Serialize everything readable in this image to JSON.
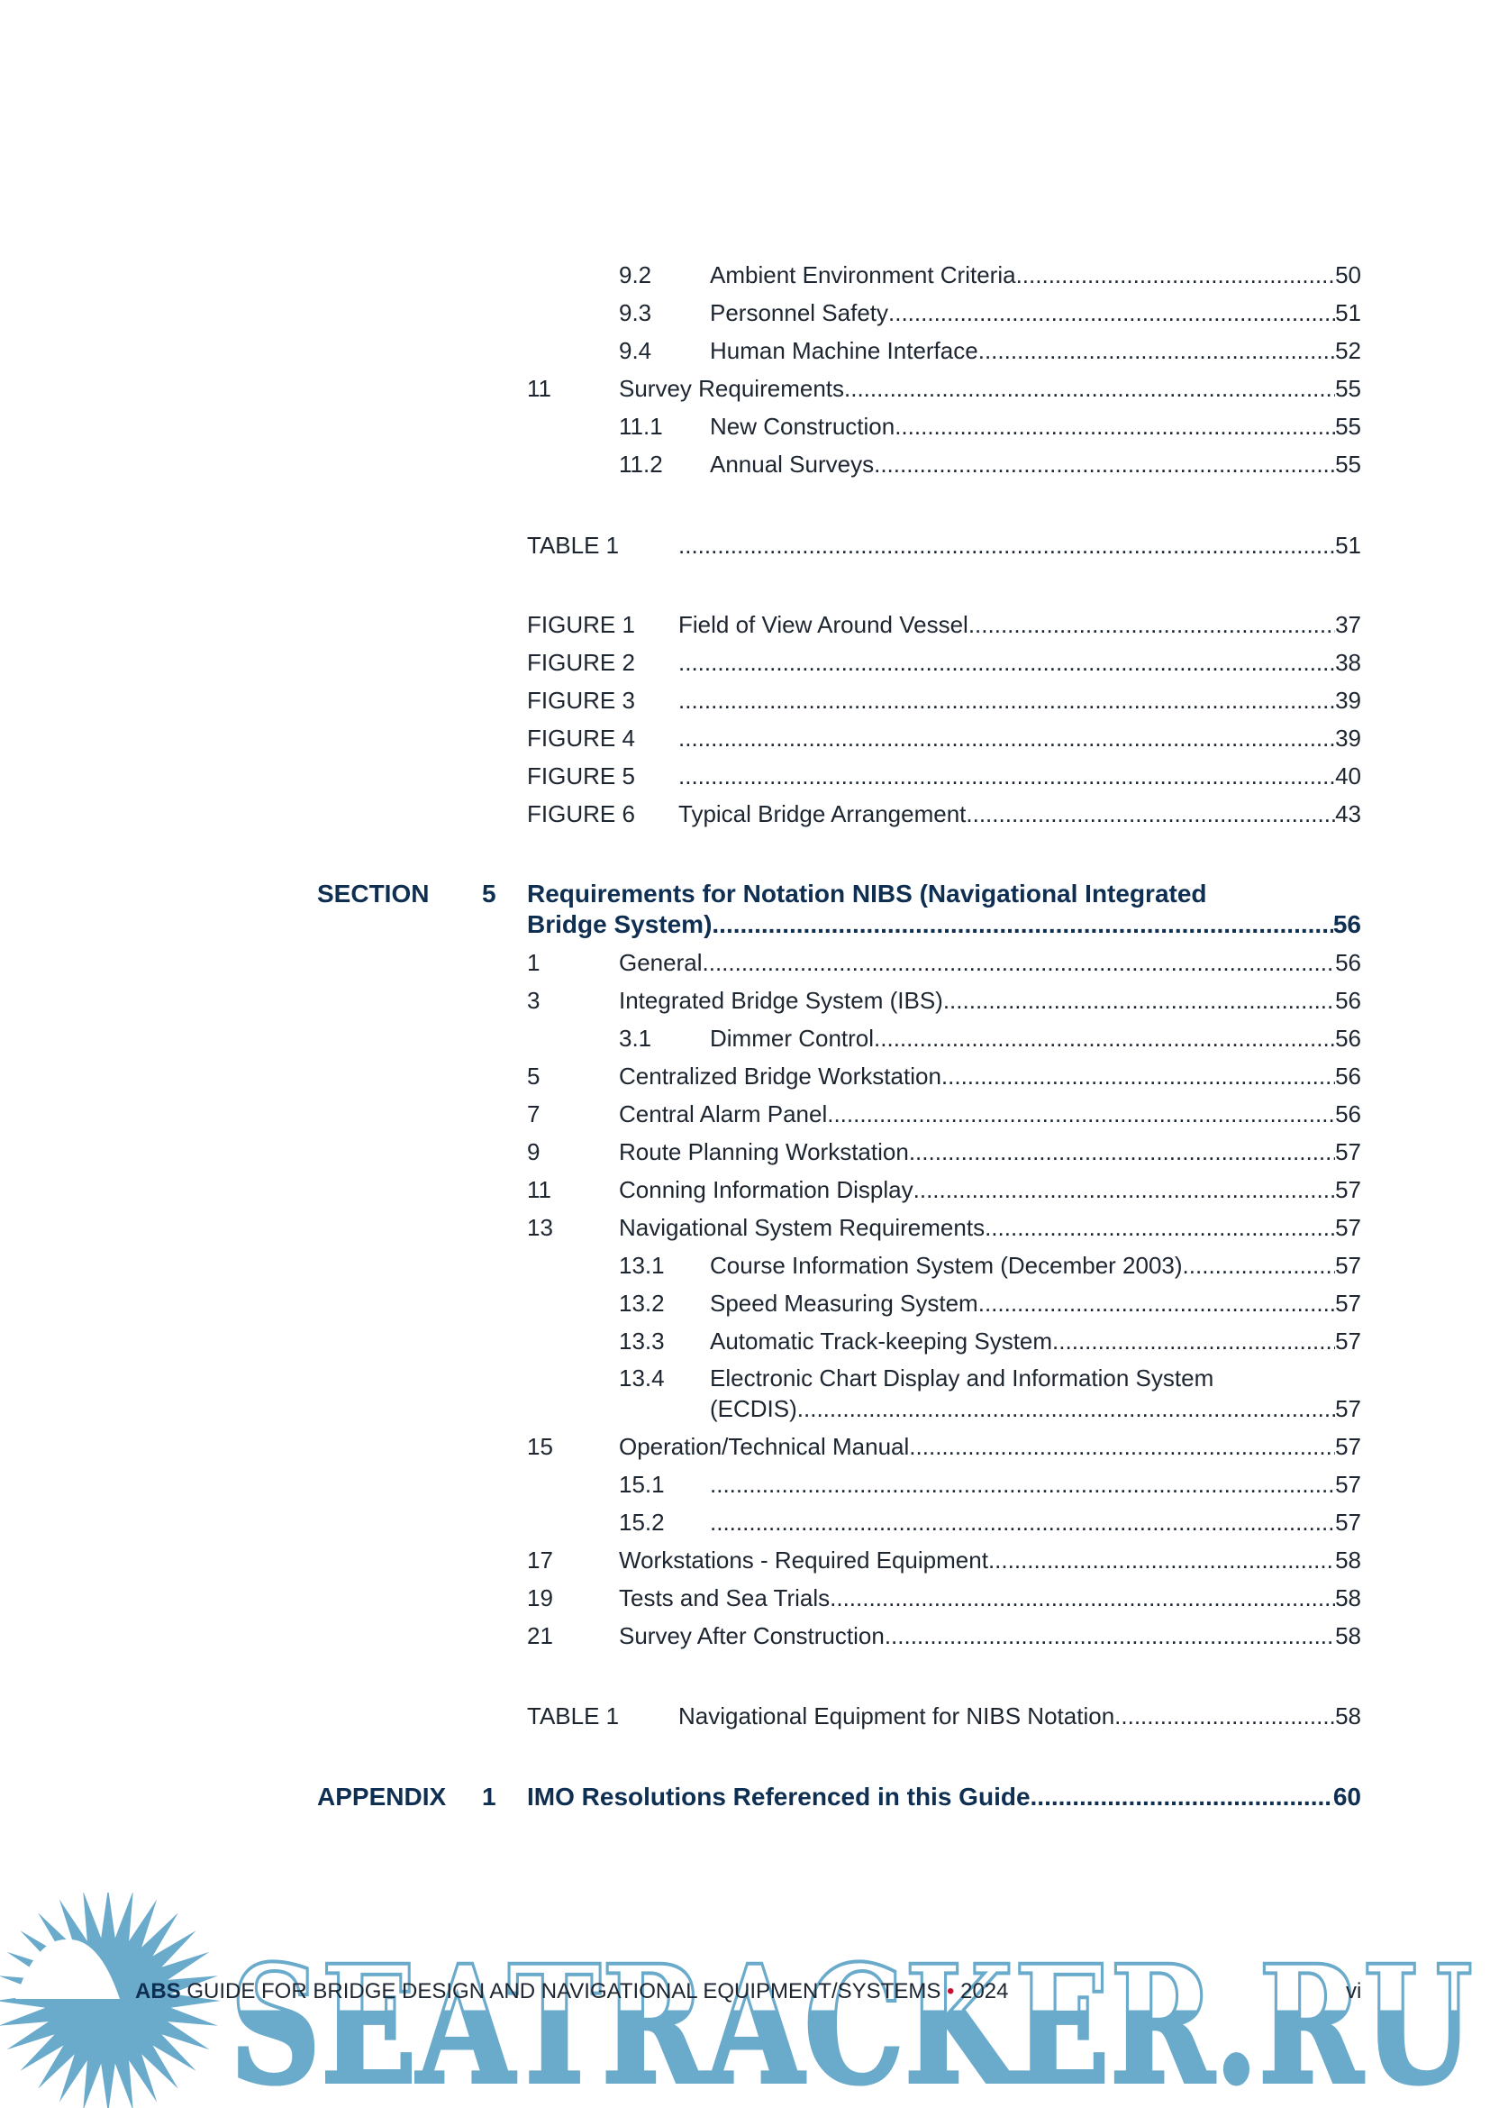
{
  "toc_top": [
    {
      "num": "9.2",
      "text": "Ambient Environment Criteria",
      "page": "50"
    },
    {
      "num": "9.3",
      "text": "Personnel Safety",
      "page": "51"
    },
    {
      "num": "9.4",
      "text": "Human Machine Interface",
      "page": "52"
    },
    {
      "num": "11",
      "text": "Survey Requirements",
      "page": "55"
    },
    {
      "num": "11.1",
      "text": "New Construction",
      "page": "55"
    },
    {
      "num": "11.2",
      "text": "Annual Surveys",
      "page": "55"
    }
  ],
  "tables_top": [
    {
      "label": "TABLE 1",
      "text": "",
      "page": "51"
    }
  ],
  "figures_top": [
    {
      "label": "FIGURE 1",
      "text": "Field of View Around Vessel",
      "page": "37"
    },
    {
      "label": "FIGURE 2",
      "text": "",
      "page": "38"
    },
    {
      "label": "FIGURE 3",
      "text": "",
      "page": "39"
    },
    {
      "label": "FIGURE 4",
      "text": "",
      "page": "39"
    },
    {
      "label": "FIGURE 5",
      "text": "",
      "page": "40"
    },
    {
      "label": "FIGURE 6",
      "text": "Typical Bridge Arrangement",
      "page": "43"
    }
  ],
  "section5": {
    "label": "SECTION",
    "number": "5",
    "title_line1": "Requirements for Notation NIBS (Navigational Integrated",
    "title_line2": "Bridge System)",
    "page": "56",
    "entries": [
      {
        "num": "1",
        "text": "General",
        "page": "56"
      },
      {
        "num": "3",
        "text": "Integrated Bridge System (IBS)",
        "page": "56"
      },
      {
        "num": "3.1",
        "text": "Dimmer Control",
        "page": "56"
      },
      {
        "num": "5",
        "text": "Centralized Bridge Workstation",
        "page": "56"
      },
      {
        "num": "7",
        "text": "Central Alarm Panel",
        "page": "56"
      },
      {
        "num": "9",
        "text": "Route Planning Workstation",
        "page": "57"
      },
      {
        "num": "11",
        "text": "Conning Information Display",
        "page": "57"
      },
      {
        "num": "13",
        "text": "Navigational System Requirements",
        "page": "57"
      },
      {
        "num": "13.1",
        "text": "Course Information System (December 2003)",
        "page": "57"
      },
      {
        "num": "13.2",
        "text": "Speed Measuring System",
        "page": "57"
      },
      {
        "num": "13.3",
        "text": "Automatic Track-keeping System",
        "page": "57"
      },
      {
        "num": "13.4",
        "text": "Electronic Chart Display and Information System",
        "text2": "(ECDIS)",
        "page": "57"
      },
      {
        "num": "15",
        "text": "Operation/Technical Manual",
        "page": "57"
      },
      {
        "num": "15.1",
        "text": "",
        "page": "57"
      },
      {
        "num": "15.2",
        "text": "",
        "page": "57"
      },
      {
        "num": "17",
        "text": "Workstations - Required Equipment",
        "page": "58"
      },
      {
        "num": "19",
        "text": "Tests and Sea Trials",
        "page": "58"
      },
      {
        "num": "21",
        "text": "Survey After Construction",
        "page": "58"
      }
    ],
    "table": {
      "label": "TABLE 1",
      "text": "Navigational Equipment for NIBS Notation ",
      "page": "58"
    }
  },
  "appendix": {
    "label": "APPENDIX",
    "number": "1",
    "title": "IMO Resolutions Referenced in this Guide",
    "page": "60"
  },
  "footer": {
    "brand": "ABS",
    "title": "GUIDE FOR BRIDGE DESIGN AND NAVIGATIONAL EQUIPMENT/SYSTEMS",
    "bullet": "•",
    "year": "2024",
    "page": "vi",
    "bullet_color": "#c8102e"
  },
  "watermark": {
    "text": "SEATRACKER.RU",
    "color": "#6aaacb"
  }
}
